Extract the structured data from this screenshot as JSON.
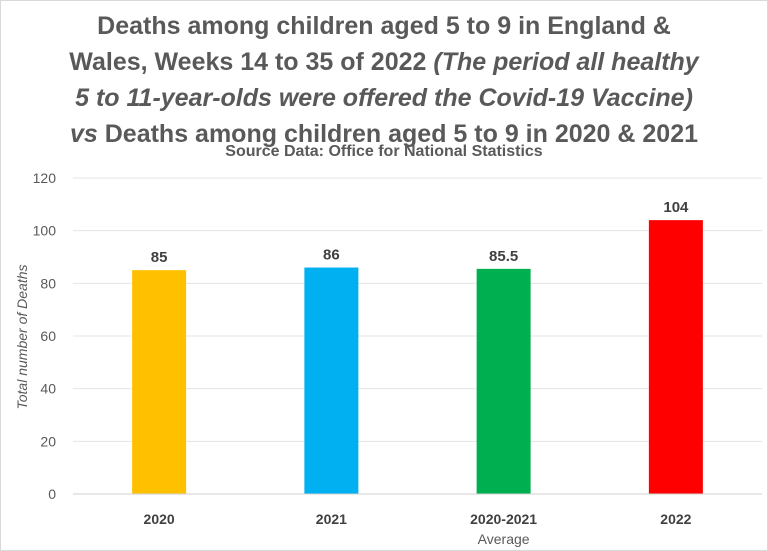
{
  "title": {
    "line1": "Deaths among children aged 5 to 9 in England &",
    "line2_plain": "Wales, Weeks 14 to 35 of 2022 ",
    "line2_italic": "(The period all healthy",
    "line3_italic": "5 to 11-year-olds were offered the Covid-19 Vaccine)",
    "line4_italic": "vs",
    "line4_plain": " Deaths among children aged 5 to 9 in 2020 & 2021"
  },
  "subtitle": "Source Data: Office for National Statistics",
  "chart_data": {
    "type": "bar",
    "categories": [
      "2020",
      "2021",
      "2020-2021",
      "2022"
    ],
    "category_sublabels": [
      "",
      "",
      "Average",
      ""
    ],
    "values": [
      85,
      86,
      85.5,
      104
    ],
    "value_labels": [
      "85",
      "86",
      "85.5",
      "104"
    ],
    "colors": [
      "#FFC000",
      "#00B0F0",
      "#00B050",
      "#FF0000"
    ],
    "xlabel": "",
    "ylabel": "Total number of Deaths",
    "ylim": [
      0,
      120
    ],
    "yticks": [
      0,
      20,
      40,
      60,
      80,
      100,
      120
    ],
    "grid": true,
    "legend": "none"
  }
}
